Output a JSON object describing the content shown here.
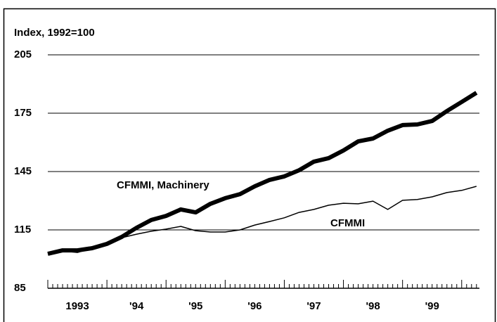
{
  "chart_data": {
    "type": "line",
    "y_axis_label": "Index, 1992=100",
    "x": [
      1993.0,
      1993.25,
      1993.5,
      1993.75,
      1994.0,
      1994.25,
      1994.5,
      1994.75,
      1995.0,
      1995.25,
      1995.5,
      1995.75,
      1996.0,
      1996.25,
      1996.5,
      1996.75,
      1997.0,
      1997.25,
      1997.5,
      1997.75,
      1998.0,
      1998.25,
      1998.5,
      1998.75,
      1999.0,
      1999.25,
      1999.5,
      1999.75,
      2000.0,
      2000.25
    ],
    "series": [
      {
        "name": "CFMMI, Machinery",
        "color": "#000000",
        "width": 6,
        "values": [
          102.7,
          104.5,
          104.5,
          105.6,
          107.8,
          111.4,
          116.1,
          120.1,
          122.2,
          125.5,
          124.0,
          128.4,
          131.3,
          133.4,
          137.4,
          140.7,
          142.5,
          145.7,
          150.1,
          151.9,
          155.8,
          160.5,
          162.0,
          166.0,
          168.9,
          169.2,
          171.0,
          176.1,
          180.8,
          185.5
        ]
      },
      {
        "name": "CFMMI",
        "color": "#000000",
        "width": 1.5,
        "values": [
          102.7,
          104.2,
          103.4,
          105.6,
          108.5,
          111.0,
          112.8,
          114.3,
          115.4,
          116.8,
          114.6,
          113.9,
          113.9,
          115.0,
          117.5,
          119.3,
          121.2,
          124.0,
          125.5,
          127.7,
          128.7,
          128.4,
          129.8,
          125.5,
          130.2,
          130.6,
          132.0,
          134.2,
          135.3,
          137.4
        ]
      }
    ],
    "xlim": [
      1993.0,
      2000.3
    ],
    "xticks": [
      {
        "value": 1993.5,
        "label": "1993"
      },
      {
        "value": 1994.5,
        "label": "'94"
      },
      {
        "value": 1995.5,
        "label": "'95"
      },
      {
        "value": 1996.5,
        "label": "'96"
      },
      {
        "value": 1997.5,
        "label": "'97"
      },
      {
        "value": 1998.5,
        "label": "'98"
      },
      {
        "value": 1999.5,
        "label": "'99"
      }
    ],
    "ylim": [
      85,
      205
    ],
    "yticks": [
      85,
      115,
      145,
      175,
      205
    ],
    "grid": true
  }
}
